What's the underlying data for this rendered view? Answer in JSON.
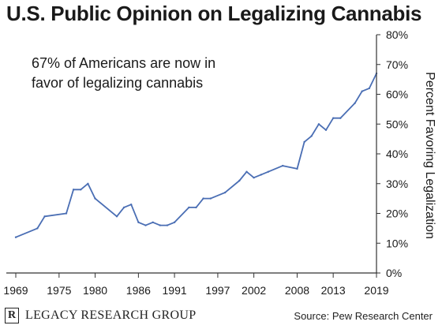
{
  "header": {
    "title": "U.S. Public Opinion on Legalizing Cannabis"
  },
  "footer": {
    "brand_logo_letter": "R",
    "brand_name": "LEGACY RESEARCH GROUP",
    "source": "Source: Pew Research Center"
  },
  "colors": {
    "line": "#4a6eb4",
    "axis": "#333333",
    "text": "#1a1a1a"
  },
  "chart_data": {
    "type": "line",
    "title": "U.S. Public Opinion on Legalizing Cannabis",
    "annotation": [
      "67% of Americans are now in",
      "favor of legalizing cannabis"
    ],
    "ylabel": "Percent Favoring Legalization",
    "xlabel": "",
    "xlim": [
      1969,
      2019
    ],
    "ylim": [
      0,
      80
    ],
    "y_axis_side": "right",
    "grid": false,
    "x_ticks": [
      1969,
      1975,
      1980,
      1986,
      1991,
      1997,
      2002,
      2008,
      2013,
      2019
    ],
    "y_ticks": [
      "0%",
      "10%",
      "20%",
      "30%",
      "40%",
      "50%",
      "60%",
      "70%",
      "80%"
    ],
    "y_tick_values": [
      0,
      10,
      20,
      30,
      40,
      50,
      60,
      70,
      80
    ],
    "series": [
      {
        "x": [
          1969,
          1972,
          1973,
          1976,
          1977,
          1978,
          1979,
          1980,
          1983,
          1984,
          1985,
          1986,
          1987,
          1988,
          1989,
          1990,
          1991,
          1993,
          1994,
          1995,
          1996,
          1998,
          2000,
          2001,
          2002,
          2003,
          2004,
          2006,
          2008,
          2009,
          2010,
          2011,
          2012,
          2013,
          2014,
          2016,
          2017,
          2018,
          2019
        ],
        "y": [
          12,
          15,
          19,
          20,
          28,
          28,
          30,
          25,
          19,
          22,
          23,
          17,
          16,
          17,
          16,
          16,
          17,
          22,
          22,
          25,
          25,
          27,
          31,
          34,
          32,
          33,
          34,
          36,
          35,
          44,
          46,
          50,
          48,
          52,
          52,
          57,
          61,
          62,
          67
        ]
      }
    ]
  }
}
